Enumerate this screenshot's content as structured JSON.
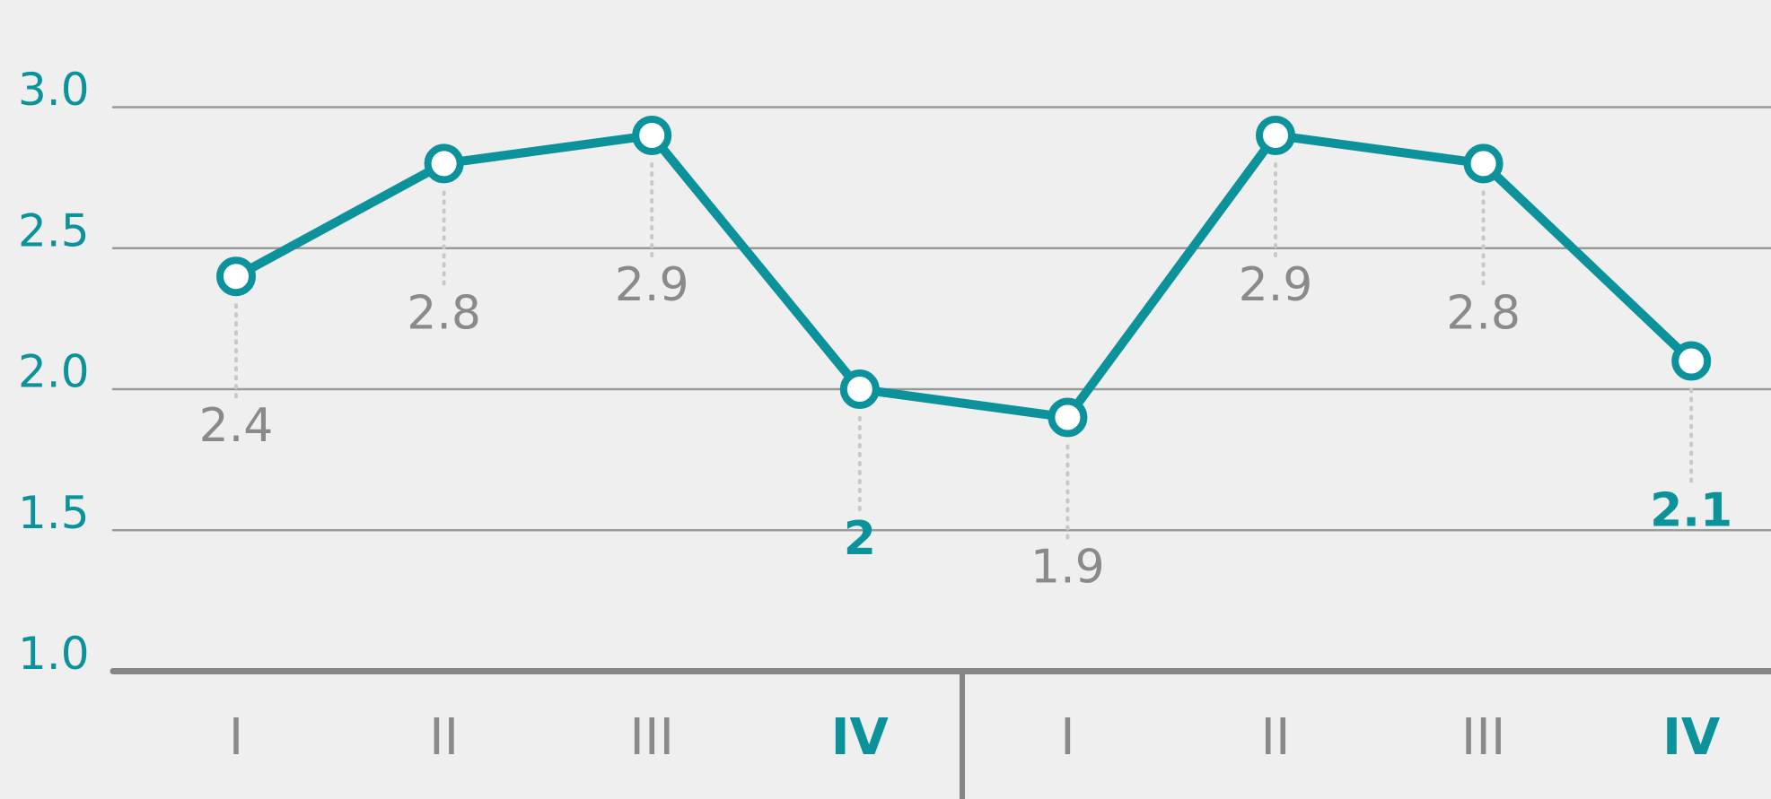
{
  "chart_data": {
    "type": "line",
    "categories": [
      "I",
      "II",
      "III",
      "IV",
      "I",
      "II",
      "III",
      "IV"
    ],
    "series": [
      {
        "color": "#0c929b",
        "values": [
          2.4,
          2.8,
          2.9,
          2,
          1.9,
          2.9,
          2.8,
          2.1
        ]
      }
    ],
    "highlight": [
      3,
      7
    ],
    "ylim": [
      1,
      3
    ],
    "yticks": [
      {
        "value": 1,
        "label": "1.0"
      },
      {
        "value": 1.5,
        "label": "1.5"
      },
      {
        "value": 2,
        "label": "2.0"
      },
      {
        "value": 2.5,
        "label": "2.5"
      },
      {
        "value": 3,
        "label": "3.0"
      }
    ],
    "grid": true
  }
}
